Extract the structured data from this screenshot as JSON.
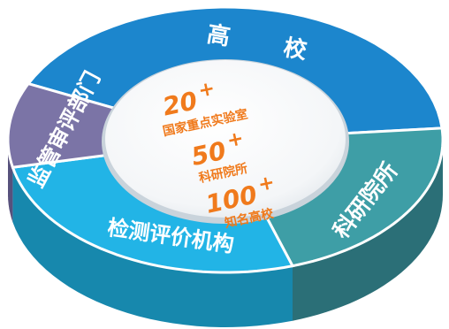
{
  "diagram": {
    "segments": [
      {
        "label": "高　校",
        "color": "#1c86cd",
        "side": "#145f95"
      },
      {
        "label": "科研院所",
        "color": "#3e9ea6",
        "side": "#2b6f77"
      },
      {
        "label": "检测评价机构",
        "color": "#22b4e6",
        "side": "#1788ad"
      },
      {
        "label": "监管审评部门",
        "color": "#7b74a6",
        "side": "#57517c"
      }
    ],
    "stats": [
      {
        "number": "20",
        "plus": "+",
        "caption": "国家重点实验室"
      },
      {
        "number": "50",
        "plus": "+",
        "caption": "科研院所"
      },
      {
        "number": "100",
        "plus": "+",
        "caption": "知名高校"
      }
    ]
  }
}
